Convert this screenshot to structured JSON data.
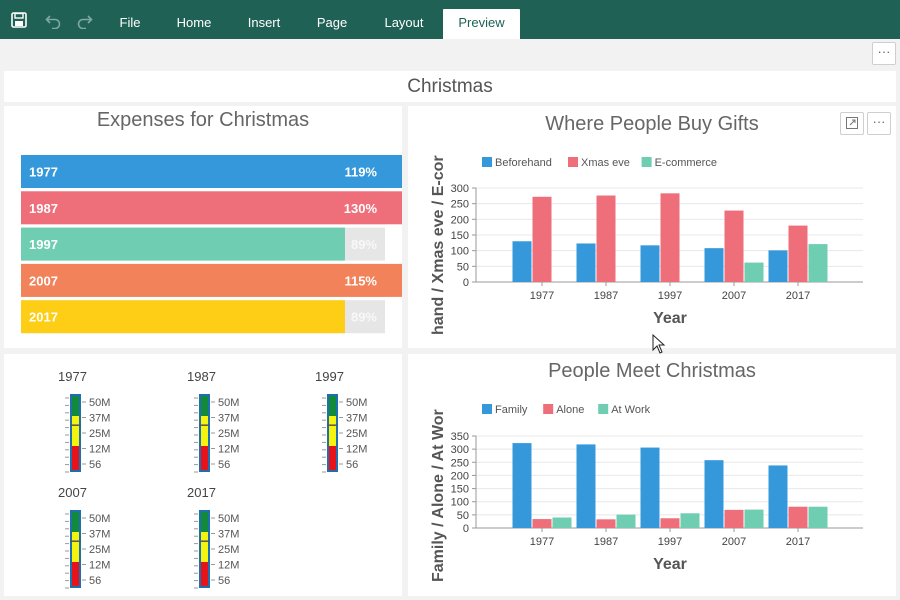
{
  "ribbon": {
    "tabs": [
      {
        "label": "File"
      },
      {
        "label": "Home"
      },
      {
        "label": "Insert"
      },
      {
        "label": "Page"
      },
      {
        "label": "Layout"
      },
      {
        "label": "Preview"
      }
    ],
    "active_tab": "Preview",
    "icons": [
      "save-icon",
      "undo-icon",
      "redo-icon"
    ]
  },
  "page": {
    "title": "Christmas",
    "more_label": "···"
  },
  "colors": {
    "ribbon": "#1f6155",
    "blue": "#3498db",
    "red": "#ee6e7a",
    "teal": "#6fcdb1",
    "orange": "#f2825a",
    "yellow": "#fecd16",
    "bar_track": "#e6e6e6"
  },
  "expenses": {
    "title": "Expenses for Christmas",
    "chart_data": {
      "type": "bar",
      "title": "Expenses for Christmas",
      "categories": [
        "1977",
        "1987",
        "1997",
        "2007",
        "2017"
      ],
      "values": [
        119,
        130,
        89,
        115,
        89
      ],
      "value_labels": [
        "119%",
        "130%",
        "89%",
        "115%",
        "89%"
      ],
      "unit": "%",
      "colors": [
        "#3498db",
        "#ee6e7a",
        "#6fcdb1",
        "#f2825a",
        "#fecd16"
      ]
    }
  },
  "gifts": {
    "title": "Where People Buy Gifts",
    "chart_data": {
      "type": "bar",
      "title": "Where People Buy Gifts",
      "xlabel": "Year",
      "ylabel": "Beforehand / Xmas eve / E-commerce",
      "ylabel_visible": "hand / Xmas eve / E-cor",
      "categories": [
        "1977",
        "1987",
        "1997",
        "2007",
        "2017"
      ],
      "ylim": [
        0,
        300
      ],
      "yticks": [
        "0",
        "50",
        "100",
        "150",
        "200",
        "250",
        "300"
      ],
      "legend_position": "top-left",
      "series": [
        {
          "name": "Beforehand",
          "values": [
            130,
            123,
            117,
            108,
            101
          ],
          "color": "#3498db"
        },
        {
          "name": "Xmas eve",
          "values": [
            272,
            276,
            283,
            228,
            180
          ],
          "color": "#ee6e7a"
        },
        {
          "name": "E-commerce",
          "values": [
            0,
            0,
            0,
            62,
            121
          ],
          "color": "#6fcdb1"
        }
      ]
    }
  },
  "meet": {
    "title": "People Meet Christmas",
    "chart_data": {
      "type": "bar",
      "title": "People Meet Christmas",
      "xlabel": "Year",
      "ylabel": "Family / Alone / At Work",
      "ylabel_visible": "Family / Alone / At Wor",
      "categories": [
        "1977",
        "1987",
        "1997",
        "2007",
        "2017"
      ],
      "ylim": [
        0,
        350
      ],
      "yticks": [
        "0",
        "50",
        "100",
        "150",
        "200",
        "250",
        "300",
        "350"
      ],
      "legend_position": "top-left",
      "series": [
        {
          "name": "Family",
          "values": [
            323,
            318,
            306,
            258,
            238
          ],
          "color": "#3498db"
        },
        {
          "name": "Alone",
          "values": [
            34,
            33,
            37,
            69,
            81
          ],
          "color": "#ee6e7a"
        },
        {
          "name": "At Work",
          "values": [
            40,
            51,
            56,
            70,
            81
          ],
          "color": "#6fcdb1"
        }
      ]
    }
  },
  "gauges": {
    "scale_labels": [
      "50M",
      "37M",
      "25M",
      "12M",
      "56"
    ],
    "items": [
      {
        "year": "1977",
        "level": 0.6
      },
      {
        "year": "1987",
        "level": 0.6
      },
      {
        "year": "1997",
        "level": 0.6
      },
      {
        "year": "2007",
        "level": 0.6
      },
      {
        "year": "2017",
        "level": 0.6
      }
    ]
  }
}
